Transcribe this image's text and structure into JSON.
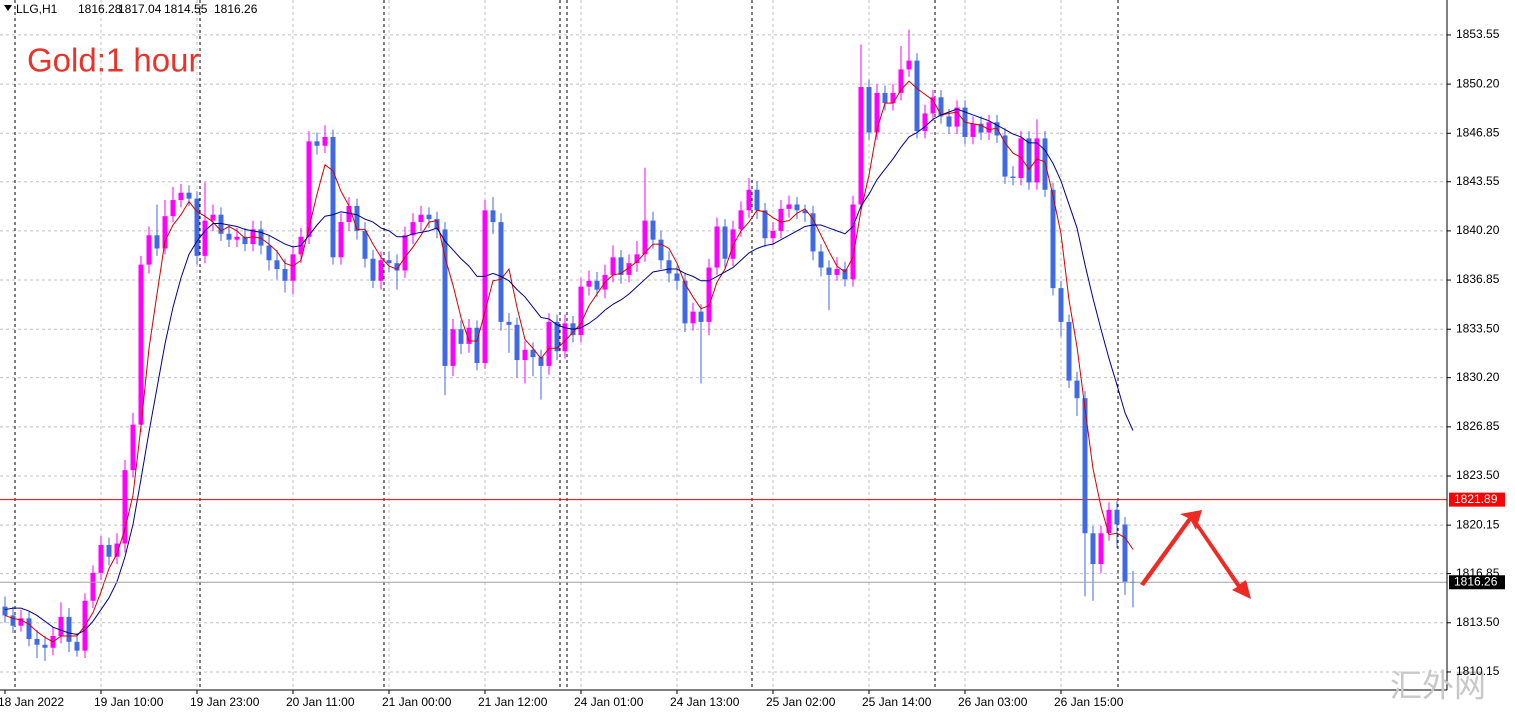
{
  "chart_data": {
    "type": "candlestick",
    "symbol": "LLG,H1",
    "title": "Gold:1 hour",
    "watermark": "汇外网",
    "colors": {
      "up": "#ff00ff",
      "down": "#4169e1",
      "title": "#e8332a"
    },
    "grid": true,
    "ylim": [
      1808.92,
      1855.93
    ],
    "yticks": [
      1853.55,
      {
        "value": 1850.2,
        "label": "1850.20"
      },
      1846.85,
      1843.55,
      {
        "value": 1840.2,
        "label": "1840.20"
      },
      1836.85,
      {
        "value": 1833.5,
        "label": "1833.50"
      },
      {
        "value": 1830.2,
        "label": "1830.20"
      },
      1826.85,
      {
        "value": 1823.5,
        "label": "1823.50"
      },
      1820.15,
      1816.85,
      {
        "value": 1813.5,
        "label": "1813.50"
      },
      1810.15
    ],
    "hline": {
      "value": 1821.89,
      "color": "#ff0000"
    },
    "categories": [
      "18 Jan 2022",
      null,
      null,
      null,
      null,
      null,
      null,
      null,
      null,
      null,
      null,
      null,
      "19 Jan 10:00",
      null,
      null,
      null,
      null,
      null,
      null,
      null,
      null,
      null,
      null,
      null,
      "19 Jan 23:00",
      null,
      null,
      null,
      null,
      null,
      null,
      null,
      null,
      null,
      null,
      null,
      "20 Jan 11:00",
      null,
      null,
      null,
      null,
      null,
      null,
      null,
      null,
      null,
      null,
      null,
      "21 Jan 00:00",
      null,
      null,
      null,
      null,
      null,
      null,
      null,
      null,
      null,
      null,
      null,
      "21 Jan 12:00",
      null,
      null,
      null,
      null,
      null,
      null,
      null,
      null,
      null,
      null,
      null,
      "24 Jan 01:00",
      null,
      null,
      null,
      null,
      null,
      null,
      null,
      null,
      null,
      null,
      null,
      "24 Jan 13:00",
      null,
      null,
      null,
      null,
      null,
      null,
      null,
      null,
      null,
      null,
      null,
      "25 Jan 02:00",
      null,
      null,
      null,
      null,
      null,
      null,
      null,
      null,
      null,
      null,
      null,
      "25 Jan 14:00",
      null,
      null,
      null,
      null,
      null,
      null,
      null,
      null,
      null,
      null,
      null,
      "26 Jan 03:00",
      null,
      null,
      null,
      null,
      null,
      null,
      null,
      null,
      null,
      null,
      null,
      "26 Jan 15:00",
      null,
      null,
      null,
      null,
      null,
      null,
      null,
      null,
      null
    ],
    "ohlc": [
      [
        1814.6,
        1815.3,
        1813.5,
        1814.0
      ],
      [
        1814.0,
        1814.6,
        1812.8,
        1813.3
      ],
      [
        1813.3,
        1814.4,
        1812.9,
        1813.8
      ],
      [
        1813.8,
        1814.3,
        1811.9,
        1812.4
      ],
      [
        1812.4,
        1813.0,
        1811.1,
        1812.0
      ],
      [
        1812.0,
        1812.6,
        1810.9,
        1811.8
      ],
      [
        1811.8,
        1813.2,
        1811.3,
        1812.6
      ],
      [
        1812.6,
        1814.9,
        1812.1,
        1813.9
      ],
      [
        1813.9,
        1814.5,
        1811.5,
        1812.2
      ],
      [
        1812.2,
        1812.8,
        1811.2,
        1811.6
      ],
      [
        1811.6,
        1815.5,
        1811.1,
        1815.0
      ],
      [
        1815.0,
        1817.4,
        1814.5,
        1816.9
      ],
      [
        1816.9,
        1819.4,
        1816.4,
        1818.8
      ],
      [
        1818.8,
        1819.3,
        1817.4,
        1818.0
      ],
      [
        1818.0,
        1819.6,
        1817.5,
        1818.9
      ],
      [
        1818.9,
        1824.6,
        1818.3,
        1823.9
      ],
      [
        1823.9,
        1827.8,
        1823.4,
        1827.0
      ],
      [
        1827.0,
        1838.5,
        1826.5,
        1837.9
      ],
      [
        1837.9,
        1840.5,
        1837.3,
        1839.9
      ],
      [
        1839.9,
        1842.0,
        1838.5,
        1839.0
      ],
      [
        1839.0,
        1842.3,
        1838.6,
        1841.2
      ],
      [
        1841.2,
        1843.2,
        1840.8,
        1842.3
      ],
      [
        1842.3,
        1843.4,
        1841.8,
        1842.8
      ],
      [
        1842.8,
        1843.3,
        1841.9,
        1842.4
      ],
      [
        1842.4,
        1842.9,
        1837.9,
        1838.5
      ],
      [
        1838.5,
        1843.5,
        1838.0,
        1840.9
      ],
      [
        1840.9,
        1842.0,
        1840.2,
        1841.3
      ],
      [
        1841.3,
        1841.8,
        1839.5,
        1840.0
      ],
      [
        1840.0,
        1840.6,
        1839.1,
        1839.6
      ],
      [
        1839.6,
        1840.4,
        1839.1,
        1839.8
      ],
      [
        1839.8,
        1840.4,
        1838.8,
        1839.3
      ],
      [
        1839.3,
        1840.9,
        1838.8,
        1840.3
      ],
      [
        1840.3,
        1840.9,
        1838.6,
        1839.2
      ],
      [
        1839.2,
        1839.9,
        1837.5,
        1838.2
      ],
      [
        1838.2,
        1838.9,
        1836.9,
        1837.6
      ],
      [
        1837.6,
        1838.3,
        1836.0,
        1836.8
      ],
      [
        1836.8,
        1839.2,
        1835.9,
        1838.6
      ],
      [
        1838.6,
        1840.4,
        1838.0,
        1839.8
      ],
      [
        1839.8,
        1847.0,
        1839.3,
        1846.3
      ],
      [
        1846.3,
        1846.9,
        1845.4,
        1846.0
      ],
      [
        1846.0,
        1847.4,
        1845.5,
        1846.6
      ],
      [
        1846.6,
        1847.1,
        1837.9,
        1838.4
      ],
      [
        1838.4,
        1841.4,
        1837.9,
        1840.8
      ],
      [
        1840.8,
        1842.5,
        1840.2,
        1841.9
      ],
      [
        1841.9,
        1842.4,
        1839.6,
        1840.2
      ],
      [
        1840.2,
        1840.8,
        1837.7,
        1838.3
      ],
      [
        1838.3,
        1838.9,
        1836.3,
        1836.8
      ],
      [
        1836.8,
        1838.8,
        1836.2,
        1838.2
      ],
      [
        1838.2,
        1838.8,
        1837.4,
        1838.0
      ],
      [
        1838.0,
        1838.6,
        1836.2,
        1837.5
      ],
      [
        1837.5,
        1840.5,
        1837.0,
        1839.9
      ],
      [
        1839.9,
        1841.4,
        1839.3,
        1840.8
      ],
      [
        1840.8,
        1841.9,
        1840.2,
        1841.3
      ],
      [
        1841.3,
        1841.8,
        1840.4,
        1841.0
      ],
      [
        1841.0,
        1841.5,
        1839.7,
        1840.3
      ],
      [
        1840.3,
        1840.8,
        1829.0,
        1831.0
      ],
      [
        1831.0,
        1834.2,
        1830.3,
        1833.5
      ],
      [
        1833.5,
        1834.1,
        1831.8,
        1832.5
      ],
      [
        1832.5,
        1834.2,
        1831.9,
        1833.6
      ],
      [
        1833.6,
        1834.1,
        1830.7,
        1831.2
      ],
      [
        1831.2,
        1842.3,
        1830.8,
        1841.6
      ],
      [
        1841.6,
        1842.5,
        1840.0,
        1840.8
      ],
      [
        1840.8,
        1841.4,
        1833.4,
        1834.0
      ],
      [
        1834.0,
        1834.6,
        1831.9,
        1833.8
      ],
      [
        1833.8,
        1834.3,
        1830.2,
        1831.4
      ],
      [
        1831.4,
        1832.7,
        1829.8,
        1832.1
      ],
      [
        1832.1,
        1832.6,
        1830.3,
        1831.6
      ],
      [
        1831.6,
        1832.1,
        1828.7,
        1831.0
      ],
      [
        1831.0,
        1834.6,
        1830.4,
        1834.0
      ],
      [
        1834.0,
        1834.5,
        1831.4,
        1832.0
      ],
      [
        1832.0,
        1834.5,
        1831.5,
        1833.9
      ],
      [
        1833.9,
        1834.4,
        1832.6,
        1833.1
      ],
      [
        1833.1,
        1837.0,
        1832.6,
        1836.4
      ],
      [
        1836.4,
        1837.5,
        1835.8,
        1836.8
      ],
      [
        1836.8,
        1837.4,
        1835.7,
        1836.2
      ],
      [
        1836.2,
        1837.9,
        1835.6,
        1837.2
      ],
      [
        1837.2,
        1839.2,
        1836.7,
        1838.4
      ],
      [
        1838.4,
        1838.9,
        1836.6,
        1837.2
      ],
      [
        1837.2,
        1838.6,
        1836.7,
        1838.0
      ],
      [
        1838.0,
        1839.5,
        1837.4,
        1838.6
      ],
      [
        1838.6,
        1844.5,
        1838.1,
        1840.9
      ],
      [
        1840.9,
        1841.5,
        1839.0,
        1839.6
      ],
      [
        1839.6,
        1840.2,
        1837.6,
        1838.2
      ],
      [
        1838.2,
        1838.8,
        1836.7,
        1837.3
      ],
      [
        1837.3,
        1837.8,
        1836.2,
        1836.8
      ],
      [
        1836.8,
        1837.3,
        1833.3,
        1833.9
      ],
      [
        1833.9,
        1835.3,
        1833.4,
        1834.7
      ],
      [
        1834.7,
        1835.2,
        1829.8,
        1834.0
      ],
      [
        1834.0,
        1838.3,
        1833.1,
        1837.7
      ],
      [
        1837.7,
        1841.1,
        1837.2,
        1840.5
      ],
      [
        1840.5,
        1841.0,
        1837.7,
        1838.3
      ],
      [
        1838.3,
        1840.9,
        1837.8,
        1840.3
      ],
      [
        1840.3,
        1842.2,
        1839.8,
        1841.6
      ],
      [
        1841.6,
        1843.8,
        1841.1,
        1843.0
      ],
      [
        1843.0,
        1843.6,
        1841.0,
        1841.6
      ],
      [
        1841.6,
        1842.1,
        1839.1,
        1839.7
      ],
      [
        1839.7,
        1840.8,
        1839.2,
        1840.2
      ],
      [
        1840.2,
        1842.3,
        1839.7,
        1841.7
      ],
      [
        1841.7,
        1842.6,
        1841.1,
        1842.0
      ],
      [
        1842.0,
        1842.5,
        1841.0,
        1841.6
      ],
      [
        1841.6,
        1842.0,
        1840.8,
        1841.4
      ],
      [
        1841.4,
        1841.9,
        1838.2,
        1838.8
      ],
      [
        1838.8,
        1839.3,
        1837.1,
        1837.7
      ],
      [
        1837.7,
        1838.2,
        1834.8,
        1837.2
      ],
      [
        1837.2,
        1838.4,
        1836.8,
        1837.6
      ],
      [
        1837.6,
        1838.1,
        1836.4,
        1836.9
      ],
      [
        1836.9,
        1842.6,
        1836.4,
        1842.0
      ],
      [
        1842.0,
        1852.9,
        1841.5,
        1850.0
      ],
      [
        1850.0,
        1850.5,
        1846.4,
        1846.9
      ],
      [
        1846.9,
        1850.2,
        1846.4,
        1849.6
      ],
      [
        1849.6,
        1850.1,
        1848.4,
        1848.9
      ],
      [
        1848.9,
        1850.2,
        1848.4,
        1849.6
      ],
      [
        1849.6,
        1852.8,
        1849.1,
        1851.2
      ],
      [
        1851.2,
        1853.9,
        1850.7,
        1851.8
      ],
      [
        1851.8,
        1852.3,
        1846.5,
        1847.0
      ],
      [
        1847.0,
        1848.8,
        1846.5,
        1848.2
      ],
      [
        1848.2,
        1849.8,
        1847.7,
        1849.3
      ],
      [
        1849.3,
        1849.8,
        1847.5,
        1848.0
      ],
      [
        1848.0,
        1848.5,
        1846.8,
        1847.3
      ],
      [
        1847.3,
        1849.1,
        1846.8,
        1848.6
      ],
      [
        1848.6,
        1849.1,
        1846.1,
        1846.6
      ],
      [
        1846.6,
        1848.0,
        1846.1,
        1847.5
      ],
      [
        1847.5,
        1848.0,
        1846.4,
        1846.9
      ],
      [
        1846.9,
        1848.1,
        1846.4,
        1847.6
      ],
      [
        1847.6,
        1848.1,
        1846.2,
        1846.7
      ],
      [
        1846.7,
        1847.2,
        1843.4,
        1843.9
      ],
      [
        1843.9,
        1844.6,
        1843.3,
        1843.8
      ],
      [
        1843.8,
        1847.0,
        1843.3,
        1846.5
      ],
      [
        1846.5,
        1847.0,
        1843.0,
        1843.5
      ],
      [
        1843.5,
        1847.8,
        1843.0,
        1846.5
      ],
      [
        1846.5,
        1847.0,
        1842.5,
        1843.0
      ],
      [
        1843.0,
        1843.5,
        1835.8,
        1836.3
      ],
      [
        1836.3,
        1836.8,
        1833.0,
        1834.0
      ],
      [
        1834.0,
        1834.5,
        1829.5,
        1830.0
      ],
      [
        1830.0,
        1830.6,
        1827.6,
        1828.8
      ],
      [
        1828.8,
        1829.3,
        1815.3,
        1819.6
      ],
      [
        1819.6,
        1820.1,
        1815.0,
        1817.5
      ],
      [
        1817.5,
        1820.1,
        1816.9,
        1819.6
      ],
      [
        1819.6,
        1821.7,
        1819.1,
        1821.2
      ],
      [
        1821.2,
        1821.8,
        1818.6,
        1820.2
      ],
      [
        1820.2,
        1820.7,
        1815.4,
        1816.3
      ],
      [
        1816.28,
        1817.04,
        1814.55,
        1816.26
      ]
    ],
    "lines": [
      {
        "color": "#d40000",
        "values": [
          1814.0,
          1813.8,
          1813.7,
          1813.4,
          1812.9,
          1812.5,
          1812.2,
          1812.6,
          1812.6,
          1812.6,
          1813.3,
          1814.2,
          1815.6,
          1817.2,
          1818.2,
          1819.9,
          1822.2,
          1826.9,
          1832.2,
          1835.9,
          1839.5,
          1840.6,
          1841.3,
          1842.2,
          1841.5,
          1841.2,
          1840.8,
          1840.2,
          1840.5,
          1840.2,
          1839.7,
          1839.8,
          1839.7,
          1839.3,
          1838.8,
          1838.0,
          1837.8,
          1838.2,
          1840.4,
          1842.7,
          1844.7,
          1844.3,
          1842.9,
          1841.9,
          1840.3,
          1840.3,
          1839.3,
          1838.4,
          1837.8,
          1837.6,
          1838.4,
          1839.1,
          1839.9,
          1840.8,
          1840.9,
          1838.4,
          1836.5,
          1834.3,
          1832.7,
          1832.7,
          1834.7,
          1836.8,
          1836.9,
          1837.6,
          1835.0,
          1832.8,
          1832.2,
          1831.5,
          1832.2,
          1832.2,
          1832.7,
          1833.3,
          1833.9,
          1835.1,
          1835.9,
          1836.7,
          1837.2,
          1837.3,
          1837.7,
          1838.1,
          1838.7,
          1839.3,
          1839.3,
          1839.0,
          1838.0,
          1836.6,
          1835.7,
          1834.9,
          1835.1,
          1836.7,
          1837.6,
          1839.2,
          1840.2,
          1840.8,
          1841.6,
          1841.5,
          1841.1,
          1840.8,
          1840.9,
          1841.4,
          1841.7,
          1841.0,
          1839.9,
          1838.8,
          1837.8,
          1837.4,
          1838.4,
          1841.6,
          1844.0,
          1847.1,
          1848.9,
          1848.9,
          1849.8,
          1850.4,
          1849.9,
          1849.5,
          1849.1,
          1848.1,
          1848.2,
          1848.3,
          1847.6,
          1847.5,
          1847.4,
          1847.1,
          1847.2,
          1846.2,
          1845.5,
          1845.2,
          1844.4,
          1845.1,
          1844.9,
          1842.6,
          1840.0,
          1835.5,
          1832.3,
          1828.1,
          1824.0,
          1821.4,
          1819.5,
          1819.6,
          1819.3,
          1818.5
        ]
      },
      {
        "color": "#00008b",
        "values": [
          1814.4,
          1814.5,
          1814.5,
          1814.3,
          1814.0,
          1813.6,
          1813.2,
          1813.0,
          1812.8,
          1812.7,
          1813.0,
          1813.6,
          1814.4,
          1815.2,
          1816.3,
          1818.0,
          1820.2,
          1823.3,
          1826.5,
          1829.5,
          1832.5,
          1835.0,
          1837.0,
          1838.6,
          1839.5,
          1840.2,
          1840.7,
          1840.7,
          1840.6,
          1840.5,
          1840.3,
          1840.2,
          1840.1,
          1839.9,
          1839.6,
          1839.3,
          1839.1,
          1839.2,
          1839.9,
          1840.6,
          1841.2,
          1841.3,
          1841.5,
          1841.4,
          1841.3,
          1841.0,
          1840.8,
          1840.4,
          1840.2,
          1839.8,
          1839.8,
          1840.0,
          1840.1,
          1840.2,
          1840.4,
          1839.5,
          1838.9,
          1838.3,
          1837.8,
          1837.1,
          1837.1,
          1837.3,
          1837.1,
          1836.8,
          1836.2,
          1835.7,
          1835.0,
          1834.3,
          1834.2,
          1833.8,
          1833.6,
          1833.5,
          1833.6,
          1833.9,
          1834.3,
          1834.8,
          1835.2,
          1835.5,
          1835.9,
          1836.4,
          1836.9,
          1837.4,
          1837.5,
          1837.6,
          1837.6,
          1837.3,
          1837.1,
          1836.8,
          1836.8,
          1837.1,
          1837.4,
          1837.7,
          1838.2,
          1838.7,
          1839.0,
          1839.2,
          1839.3,
          1839.6,
          1839.9,
          1840.2,
          1840.5,
          1840.6,
          1840.6,
          1840.4,
          1840.2,
          1840.0,
          1840.5,
          1841.9,
          1842.7,
          1843.7,
          1844.4,
          1845.1,
          1845.9,
          1846.6,
          1846.9,
          1847.3,
          1847.8,
          1848.1,
          1848.3,
          1848.5,
          1848.3,
          1848.1,
          1847.9,
          1847.7,
          1847.4,
          1847.1,
          1846.8,
          1846.6,
          1846.2,
          1846.2,
          1845.7,
          1844.8,
          1843.6,
          1842.0,
          1840.4,
          1837.9,
          1835.6,
          1833.5,
          1831.5,
          1829.7,
          1827.8,
          1826.6
        ]
      }
    ]
  }
}
